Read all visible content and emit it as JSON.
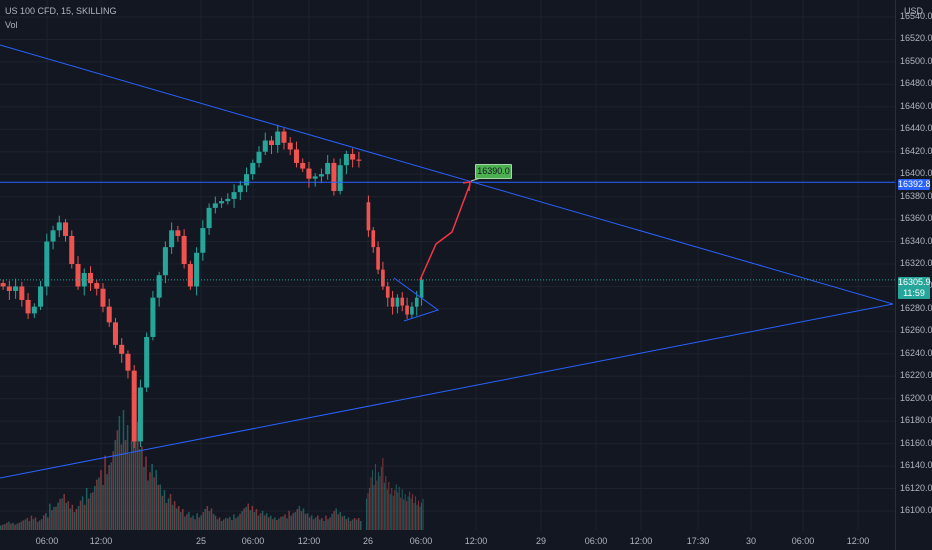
{
  "header": {
    "symbol": "US 100 CFD, 15, SKILLING",
    "indicator": "Vol"
  },
  "chart_data": {
    "type": "candlestick",
    "currency": "USD",
    "y_ticks": [
      16540.0,
      16520.0,
      16500.0,
      16480.0,
      16460.0,
      16440.0,
      16420.0,
      16400.0,
      16380.0,
      16360.0,
      16340.0,
      16320.0,
      16300.0,
      16280.0,
      16260.0,
      16240.0,
      16220.0,
      16200.0,
      16180.0,
      16160.0,
      16140.0,
      16120.0,
      16100.0
    ],
    "y_tick_labels": [
      "16540.0",
      "16520.0",
      "16500.0",
      "16480.0",
      "16460.0",
      "16440.0",
      "16420.0",
      "16400.0",
      "16380.0",
      "16360.0",
      "16340.0",
      "16320.0",
      "16300.0",
      "16280.0",
      "16260.0",
      "16240.0",
      "16220.0",
      "16200.0",
      "16180.0",
      "16160.0",
      "16140.0",
      "16120.0",
      "16100.0"
    ],
    "x_tick_labels": [
      "06:00",
      "12:00",
      "25",
      "06:00",
      "12:00",
      "26",
      "06:00",
      "12:00",
      "29",
      "06:00",
      "12:00",
      "17:30",
      "30",
      "06:00",
      "12:00"
    ],
    "price_path": [
      16303,
      16300,
      16296,
      16300,
      16288,
      16276,
      16282,
      16300,
      16340,
      16350,
      16357,
      16345,
      16320,
      16300,
      16312,
      16303,
      16298,
      16282,
      16268,
      16248,
      16240,
      16225,
      16162,
      16210,
      16255,
      16290,
      16310,
      16335,
      16350,
      16345,
      16320,
      16300,
      16330,
      16352,
      16370,
      16374,
      16376,
      16378,
      16384,
      16390,
      16400,
      16410,
      16420,
      16430,
      16426,
      16438,
      16428,
      16422,
      16410,
      16405,
      16396,
      16398,
      16400,
      16410,
      16385,
      16408,
      16418,
      16413,
      16412
    ],
    "price_path_2": [
      16375,
      16350,
      16335,
      16315,
      16300,
      16290,
      16282,
      16290,
      16283,
      16275,
      16282,
      16290,
      16306
    ],
    "volume_levels": [
      0.05,
      0.07,
      0.06,
      0.08,
      0.1,
      0.12,
      0.09,
      0.14,
      0.22,
      0.26,
      0.3,
      0.24,
      0.2,
      0.28,
      0.35,
      0.42,
      0.5,
      0.62,
      0.75,
      0.95,
      1.0,
      0.85,
      0.9,
      0.7,
      0.55,
      0.5,
      0.38,
      0.3,
      0.24,
      0.2,
      0.15,
      0.12,
      0.14,
      0.2,
      0.18,
      0.12,
      0.1,
      0.11,
      0.13,
      0.18,
      0.22,
      0.2,
      0.16,
      0.14,
      0.12,
      0.11,
      0.13,
      0.16,
      0.2,
      0.18,
      0.14,
      0.12,
      0.1,
      0.12,
      0.18,
      0.15,
      0.12,
      0.1,
      0.1
    ],
    "volume_levels_2": [
      0.35,
      0.5,
      0.55,
      0.6,
      0.45,
      0.4,
      0.38,
      0.36,
      0.34,
      0.32,
      0.3,
      0.28,
      0.26
    ],
    "horizontal_line": {
      "price": 16392.8,
      "label": "16392.8"
    },
    "last_price": {
      "price": 16305.9,
      "label": "16305.9",
      "countdown": "11:59"
    },
    "target": {
      "price": 16390.0,
      "label": "16390.0"
    },
    "up_color": "#26a69a",
    "down_color": "#ef5350",
    "line_color": "#2962ff",
    "projection_color": "#f23645",
    "target_label_color": "#4caf50"
  }
}
